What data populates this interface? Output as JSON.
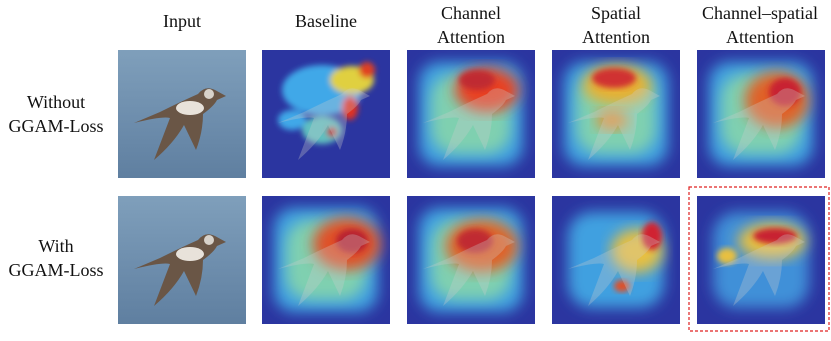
{
  "columns": [
    {
      "lines": [
        "Input"
      ]
    },
    {
      "lines": [
        "Baseline"
      ]
    },
    {
      "lines": [
        "Channel",
        "Attention"
      ]
    },
    {
      "lines": [
        "Spatial",
        "Attention"
      ]
    },
    {
      "lines": [
        "Channel–spatial",
        "Attention"
      ]
    }
  ],
  "rows": [
    {
      "lines": [
        "Without",
        "GGAM-Loss"
      ]
    },
    {
      "lines": [
        "With",
        "GGAM-Loss"
      ]
    }
  ]
}
